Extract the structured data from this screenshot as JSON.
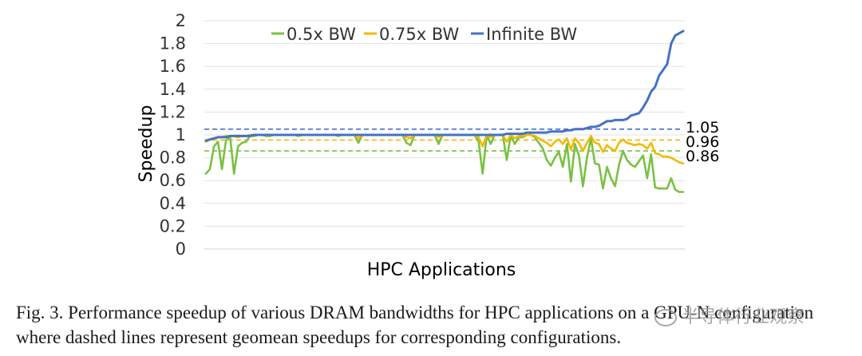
{
  "chart_data": {
    "type": "line",
    "ylabel": "Speedup",
    "xlabel": "HPC Applications",
    "ylim": [
      0,
      2
    ],
    "yticks": [
      "0",
      "0.2",
      "0.4",
      "0.6",
      "0.8",
      "1",
      "1.2",
      "1.4",
      "1.6",
      "1.8",
      "2"
    ],
    "grid": true,
    "legend_placement": "top-center",
    "n_points": 120,
    "series": [
      {
        "name": "0.5x BW",
        "color": "#7ac143",
        "values": [
          0.66,
          0.7,
          0.9,
          0.94,
          0.7,
          0.95,
          0.99,
          0.66,
          0.9,
          0.93,
          0.94,
          0.99,
          0.99,
          1.0,
          1.0,
          0.99,
          0.99,
          1.0,
          1.0,
          1.0,
          1.0,
          1.0,
          1.0,
          0.99,
          1.0,
          1.0,
          1.0,
          1.0,
          1.0,
          1.0,
          1.0,
          1.0,
          1.0,
          0.99,
          1.0,
          1.0,
          1.0,
          1.0,
          0.93,
          1.0,
          1.0,
          1.0,
          1.0,
          1.0,
          1.0,
          1.0,
          1.0,
          1.0,
          1.0,
          1.0,
          0.93,
          0.91,
          1.0,
          1.0,
          1.0,
          1.0,
          1.0,
          1.0,
          0.92,
          1.0,
          1.0,
          1.0,
          1.0,
          1.0,
          1.0,
          1.0,
          1.0,
          1.0,
          0.94,
          0.66,
          1.0,
          0.92,
          1.0,
          1.0,
          1.0,
          0.78,
          1.0,
          0.92,
          0.98,
          0.98,
          1.0,
          1.0,
          0.98,
          0.93,
          0.88,
          0.78,
          0.73,
          0.8,
          0.85,
          0.72,
          0.92,
          0.59,
          0.92,
          0.82,
          0.55,
          0.8,
          0.97,
          0.75,
          0.74,
          0.53,
          0.72,
          0.62,
          0.55,
          0.74,
          0.86,
          0.78,
          0.74,
          0.72,
          0.77,
          0.82,
          0.62,
          0.83,
          0.54,
          0.53,
          0.53,
          0.53,
          0.62,
          0.52,
          0.5,
          0.5
        ],
        "geomean": 0.86
      },
      {
        "name": "0.75x BW",
        "color": "#f5b800",
        "values": [
          0.94,
          0.96,
          0.97,
          0.98,
          0.98,
          0.99,
          0.99,
          0.99,
          0.98,
          0.99,
          0.99,
          1.0,
          1.0,
          1.0,
          1.0,
          1.0,
          1.0,
          1.0,
          1.0,
          1.0,
          1.0,
          1.0,
          1.0,
          1.0,
          1.0,
          1.0,
          1.0,
          1.0,
          1.0,
          1.0,
          1.0,
          1.0,
          1.0,
          1.0,
          1.0,
          1.0,
          1.0,
          1.0,
          0.97,
          1.0,
          1.0,
          1.0,
          1.0,
          1.0,
          1.0,
          1.0,
          1.0,
          1.0,
          1.0,
          1.0,
          0.98,
          0.97,
          1.0,
          1.0,
          1.0,
          1.0,
          1.0,
          1.0,
          0.98,
          1.0,
          1.0,
          1.0,
          1.0,
          1.0,
          1.0,
          1.0,
          1.0,
          1.0,
          0.98,
          0.9,
          1.0,
          0.98,
          1.0,
          1.0,
          1.0,
          0.94,
          1.0,
          0.97,
          0.99,
          0.99,
          1.0,
          1.0,
          0.99,
          0.97,
          0.95,
          0.93,
          0.9,
          0.94,
          0.96,
          0.92,
          0.97,
          0.87,
          0.97,
          0.93,
          0.86,
          0.93,
          0.99,
          0.93,
          0.92,
          0.85,
          0.91,
          0.88,
          0.86,
          0.93,
          0.96,
          0.93,
          0.92,
          0.91,
          0.92,
          0.91,
          0.88,
          0.93,
          0.84,
          0.83,
          0.81,
          0.81,
          0.8,
          0.78,
          0.76,
          0.75
        ],
        "geomean": 0.96
      },
      {
        "name": "Infinite BW",
        "color": "#4472c4",
        "values": [
          0.95,
          0.96,
          0.97,
          0.98,
          0.98,
          0.98,
          0.99,
          0.99,
          0.99,
          0.99,
          0.99,
          0.99,
          1.0,
          1.0,
          1.0,
          1.0,
          1.0,
          1.0,
          1.0,
          1.0,
          1.0,
          1.0,
          1.0,
          1.0,
          1.0,
          1.0,
          1.0,
          1.0,
          1.0,
          1.0,
          1.0,
          1.0,
          1.0,
          1.0,
          1.0,
          1.0,
          1.0,
          1.0,
          1.0,
          1.0,
          1.0,
          1.0,
          1.0,
          1.0,
          1.0,
          1.0,
          1.0,
          1.0,
          1.0,
          1.0,
          1.0,
          1.0,
          1.0,
          1.0,
          1.0,
          1.0,
          1.0,
          1.0,
          1.0,
          1.0,
          1.0,
          1.0,
          1.0,
          1.0,
          1.0,
          1.0,
          1.0,
          1.0,
          1.0,
          1.0,
          1.0,
          1.0,
          1.0,
          1.0,
          1.0,
          1.01,
          1.01,
          1.01,
          1.01,
          1.01,
          1.02,
          1.02,
          1.02,
          1.02,
          1.02,
          1.02,
          1.03,
          1.03,
          1.03,
          1.03,
          1.04,
          1.04,
          1.05,
          1.05,
          1.05,
          1.06,
          1.07,
          1.07,
          1.08,
          1.1,
          1.12,
          1.12,
          1.13,
          1.13,
          1.13,
          1.14,
          1.17,
          1.18,
          1.19,
          1.24,
          1.3,
          1.38,
          1.42,
          1.52,
          1.57,
          1.62,
          1.8,
          1.87,
          1.89,
          1.91
        ],
        "geomean": 1.05
      }
    ],
    "reference_lines": [
      {
        "label": "1.05",
        "value": 1.05,
        "color": "#4472c4"
      },
      {
        "label": "0.96",
        "value": 0.955,
        "color": "#f5b800"
      },
      {
        "label": "0.86",
        "value": 0.86,
        "color": "#7ac143"
      }
    ]
  },
  "caption": {
    "line1": "Fig. 3.  Performance speedup of various DRAM bandwidths for HPC applications on a GPU-N configuration",
    "line2": "where dashed lines represent geomean speedups for corresponding configurations."
  },
  "watermark": "半导体行业观察"
}
